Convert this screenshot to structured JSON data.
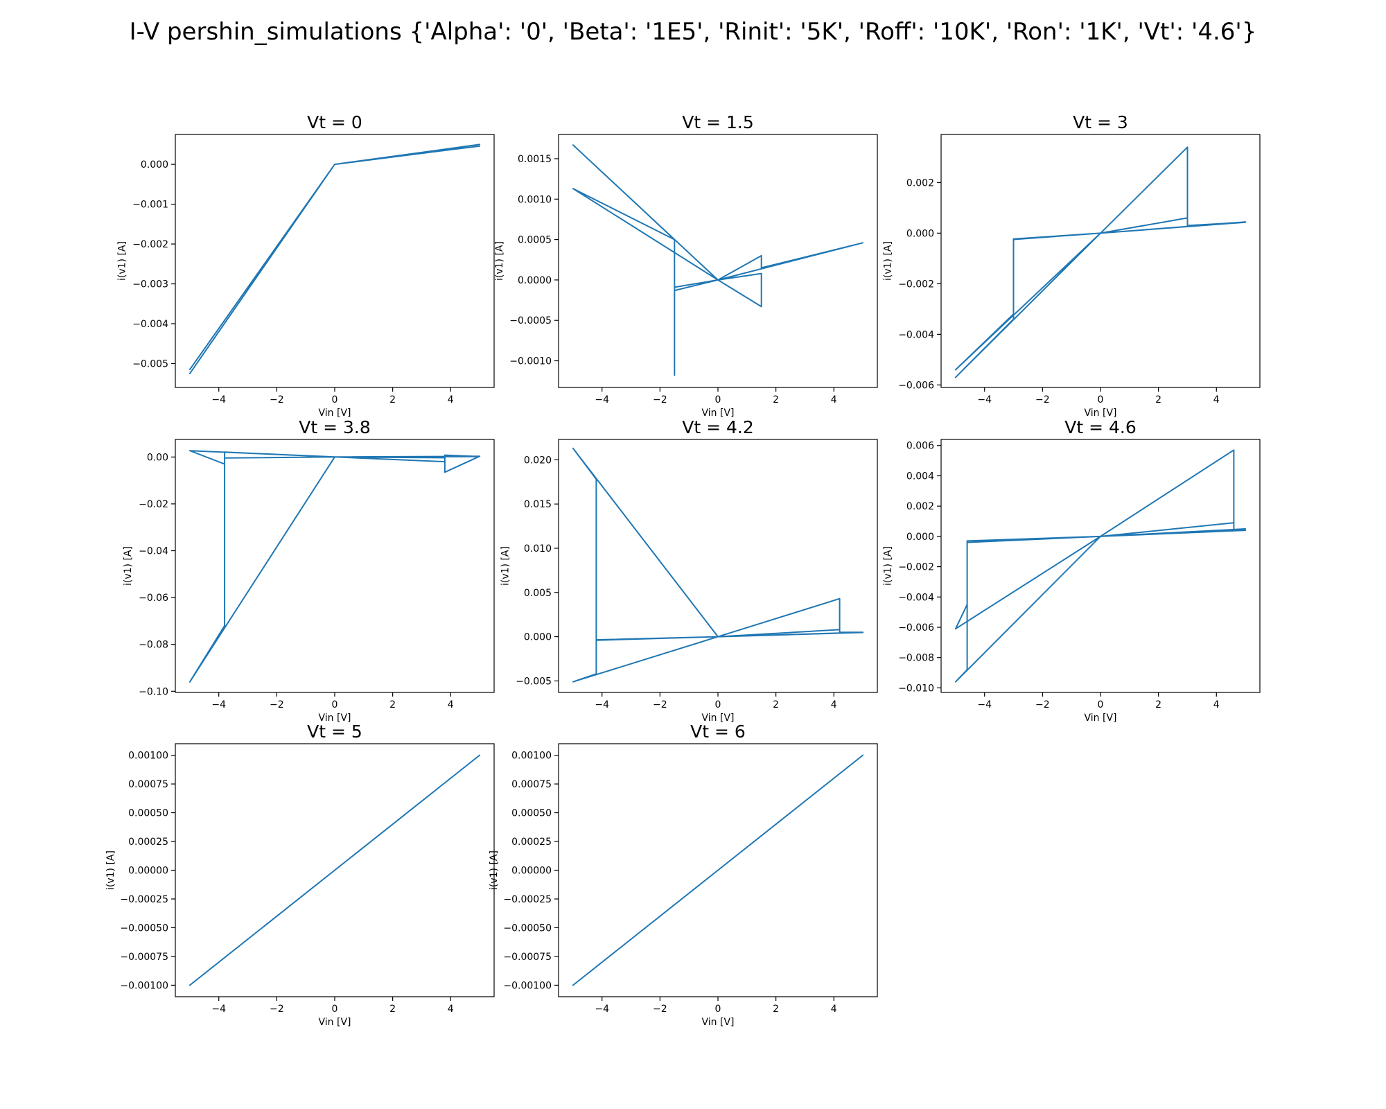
{
  "figure": {
    "title": "I-V pershin_simulations {'Alpha': '0', 'Beta': '1E5', 'Rinit': '5K', 'Roff': '10K', 'Ron': '1K', 'Vt': '4.6'}"
  },
  "colors": {
    "series": "#1f77b4"
  },
  "chart_data": [
    {
      "type": "line",
      "title": "Vt = 0",
      "xlabel": "Vin [V]",
      "ylabel": "i(v1) [A]",
      "xlim": [
        -5.5,
        5.5
      ],
      "ylim": [
        -0.0056,
        0.00075
      ],
      "xticks": [
        -4,
        -2,
        0,
        2,
        4
      ],
      "xticklabels": [
        "−4",
        "−2",
        "0",
        "2",
        "4"
      ],
      "yticks": [
        0.0,
        -0.001,
        -0.002,
        -0.003,
        -0.004,
        -0.005
      ],
      "yticklabels": [
        "0.000",
        "−0.001",
        "−0.002",
        "−0.003",
        "−0.004",
        "−0.005"
      ],
      "grid": false,
      "series": [
        {
          "x": [
            0,
            5,
            0,
            -5,
            0,
            5,
            0,
            -5,
            0
          ],
          "y": [
            0,
            0.0005,
            0,
            -0.00515,
            0,
            0.00046,
            0,
            -0.00525,
            0
          ]
        }
      ]
    },
    {
      "type": "line",
      "title": "Vt = 1.5",
      "xlabel": "Vin [V]",
      "ylabel": "i(v1) [A]",
      "xlim": [
        -5.5,
        5.5
      ],
      "ylim": [
        -0.00133,
        0.0018
      ],
      "xticks": [
        -4,
        -2,
        0,
        2,
        4
      ],
      "xticklabels": [
        "−4",
        "−2",
        "0",
        "2",
        "4"
      ],
      "yticks": [
        0.0015,
        0.001,
        0.0005,
        0.0,
        -0.0005,
        -0.001
      ],
      "yticklabels": [
        "0.0015",
        "0.0010",
        "0.0005",
        "0.0000",
        "−0.0005",
        "−0.0010"
      ],
      "grid": false,
      "series": [
        {
          "x": [
            0,
            1.5,
            1.5,
            5,
            0,
            -1.5,
            -1.5,
            -1.5,
            -5,
            0,
            1.5,
            1.5,
            0,
            -1.5,
            -1.5,
            -1.5,
            -5,
            0
          ],
          "y": [
            0,
            0.0003,
            0.00015,
            0.00046,
            0,
            -0.00013,
            0.0005,
            0.0005,
            0.00167,
            0,
            -0.00033,
            8e-05,
            0,
            -9e-05,
            -0.00118,
            0.0005,
            0.00113,
            0
          ]
        }
      ]
    },
    {
      "type": "line",
      "title": "Vt = 3",
      "xlabel": "Vin [V]",
      "ylabel": "i(v1) [A]",
      "xlim": [
        -5.5,
        5.5
      ],
      "ylim": [
        -0.0061,
        0.0039
      ],
      "xticks": [
        -4,
        -2,
        0,
        2,
        4
      ],
      "xticklabels": [
        "−4",
        "−2",
        "0",
        "2",
        "4"
      ],
      "yticks": [
        0.002,
        0.0,
        -0.002,
        -0.004,
        -0.006
      ],
      "yticklabels": [
        "0.002",
        "0.000",
        "−0.002",
        "−0.004",
        "−0.006"
      ],
      "grid": false,
      "series": [
        {
          "x": [
            0,
            3,
            3,
            5,
            0,
            -3,
            -3,
            -5,
            0,
            3,
            3,
            5,
            0,
            -3,
            -3,
            -5,
            0
          ],
          "y": [
            0,
            0.0006,
            0.0003,
            0.00043,
            0,
            -0.00025,
            -0.0032,
            -0.0054,
            0,
            0.0034,
            0.00028,
            0.00044,
            0,
            -0.00023,
            -0.0034,
            -0.0057,
            0
          ]
        }
      ]
    },
    {
      "type": "line",
      "title": "Vt = 3.8",
      "xlabel": "Vin [V]",
      "ylabel": "i(v1) [A]",
      "xlim": [
        -5.5,
        5.5
      ],
      "ylim": [
        -0.1005,
        0.0075
      ],
      "xticks": [
        -4,
        -2,
        0,
        2,
        4
      ],
      "xticklabels": [
        "−4",
        "−2",
        "0",
        "2",
        "4"
      ],
      "yticks": [
        0.0,
        -0.02,
        -0.04,
        -0.06,
        -0.08,
        -0.1
      ],
      "yticklabels": [
        "0.00",
        "−0.02",
        "−0.04",
        "−0.06",
        "−0.08",
        "−0.10"
      ],
      "grid": false,
      "series": [
        {
          "x": [
            0,
            3.8,
            3.8,
            5,
            0,
            -3.8,
            -3.8,
            -5,
            0,
            3.8,
            3.8,
            5,
            0,
            -3.8,
            -3.8,
            -5,
            0
          ],
          "y": [
            0,
            -0.002,
            0.0008,
            0.0002,
            0,
            -0.0004,
            -0.003,
            0.0027,
            0,
            -0.0003,
            -0.0065,
            0.0003,
            0,
            0.0021,
            -0.072,
            -0.096,
            0
          ]
        }
      ]
    },
    {
      "type": "line",
      "title": "Vt = 4.2",
      "xlabel": "Vin [V]",
      "ylabel": "i(v1) [A]",
      "xlim": [
        -5.5,
        5.5
      ],
      "ylim": [
        -0.0063,
        0.0223
      ],
      "xticks": [
        -4,
        -2,
        0,
        2,
        4
      ],
      "xticklabels": [
        "−4",
        "−2",
        "0",
        "2",
        "4"
      ],
      "yticks": [
        0.02,
        0.015,
        0.01,
        0.005,
        0.0,
        -0.005
      ],
      "yticklabels": [
        "0.020",
        "0.015",
        "0.010",
        "0.005",
        "0.000",
        "−0.005"
      ],
      "grid": false,
      "series": [
        {
          "x": [
            0,
            4.2,
            4.2,
            5,
            0,
            -4.2,
            -4.2,
            -5,
            0,
            4.2,
            4.2,
            5,
            0,
            -4.2,
            -4.2,
            -5,
            0
          ],
          "y": [
            0,
            0.0043,
            0.0005,
            0.0005,
            0,
            -0.00035,
            -0.0042,
            -0.0051,
            0,
            0.0008,
            0.0005,
            0.00048,
            0,
            -0.0004,
            0.0178,
            0.0213,
            0
          ]
        }
      ]
    },
    {
      "type": "line",
      "title": "Vt = 4.6",
      "xlabel": "Vin [V]",
      "ylabel": "i(v1) [A]",
      "xlim": [
        -5.5,
        5.5
      ],
      "ylim": [
        -0.0103,
        0.0064
      ],
      "xticks": [
        -4,
        -2,
        0,
        2,
        4
      ],
      "xticklabels": [
        "−4",
        "−2",
        "0",
        "2",
        "4"
      ],
      "yticks": [
        0.006,
        0.004,
        0.002,
        0.0,
        -0.002,
        -0.004,
        -0.006,
        -0.008,
        -0.01
      ],
      "yticklabels": [
        "0.006",
        "0.004",
        "0.002",
        "0.000",
        "−0.002",
        "−0.004",
        "−0.006",
        "−0.008",
        "−0.010"
      ],
      "grid": false,
      "series": [
        {
          "x": [
            0,
            4.6,
            4.6,
            5,
            0,
            -4.6,
            -4.6,
            -5,
            0,
            4.6,
            4.6,
            5,
            0,
            -4.6,
            -4.6,
            -5,
            0
          ],
          "y": [
            0,
            0.0057,
            0.0004,
            0.0005,
            0,
            -0.0003,
            -0.0088,
            -0.0096,
            0,
            0.0009,
            0.0004,
            0.0004,
            0,
            -0.0004,
            -0.0045,
            -0.0061,
            0
          ]
        }
      ]
    },
    {
      "type": "line",
      "title": "Vt = 5",
      "xlabel": "Vin [V]",
      "ylabel": "i(v1) [A]",
      "xlim": [
        -5.5,
        5.5
      ],
      "ylim": [
        -0.0011,
        0.0011
      ],
      "xticks": [
        -4,
        -2,
        0,
        2,
        4
      ],
      "xticklabels": [
        "−4",
        "−2",
        "0",
        "2",
        "4"
      ],
      "yticks": [
        0.001,
        0.00075,
        0.0005,
        0.00025,
        0.0,
        -0.00025,
        -0.0005,
        -0.00075,
        -0.001
      ],
      "yticklabels": [
        "0.00100",
        "0.00075",
        "0.00050",
        "0.00025",
        "0.00000",
        "−0.00025",
        "−0.00050",
        "−0.00075",
        "−0.00100"
      ],
      "grid": false,
      "series": [
        {
          "x": [
            0,
            5,
            0,
            -5,
            0
          ],
          "y": [
            0,
            0.001,
            0,
            -0.001,
            0
          ]
        }
      ]
    },
    {
      "type": "line",
      "title": "Vt = 6",
      "xlabel": "Vin [V]",
      "ylabel": "i(v1) [A]",
      "xlim": [
        -5.5,
        5.5
      ],
      "ylim": [
        -0.0011,
        0.0011
      ],
      "xticks": [
        -4,
        -2,
        0,
        2,
        4
      ],
      "xticklabels": [
        "−4",
        "−2",
        "0",
        "2",
        "4"
      ],
      "yticks": [
        0.001,
        0.00075,
        0.0005,
        0.00025,
        0.0,
        -0.00025,
        -0.0005,
        -0.00075,
        -0.001
      ],
      "yticklabels": [
        "0.00100",
        "0.00075",
        "0.00050",
        "0.00025",
        "0.00000",
        "−0.00025",
        "−0.00050",
        "−0.00075",
        "−0.00100"
      ],
      "grid": false,
      "series": [
        {
          "x": [
            0,
            5,
            0,
            -5,
            0
          ],
          "y": [
            0,
            0.001,
            0,
            -0.001,
            0
          ]
        }
      ]
    }
  ]
}
